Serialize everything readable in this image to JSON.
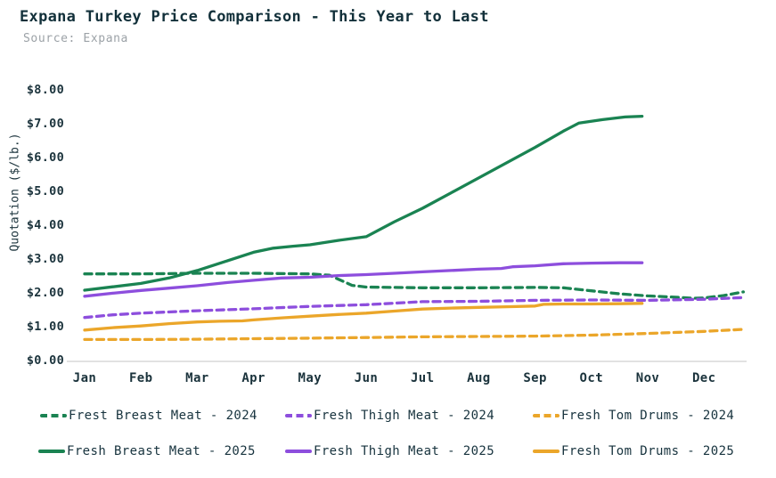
{
  "header": {
    "title": "Expana Turkey Price Comparison - This Year to Last",
    "source": "Source: Expana"
  },
  "colors": {
    "green": "#1a8352",
    "purple": "#8d4edd",
    "orange": "#eba62a",
    "title_text": "#12303a",
    "subtitle_text": "#9ca2a7",
    "axis_text": "#1b333c",
    "axis_line": "#d9d9d9"
  },
  "chart_data": {
    "type": "line",
    "title": "Expana Turkey Price Comparison - This Year to Last",
    "source": "Source: Expana",
    "xlabel": "",
    "ylabel": "Quotation ($/lb.)",
    "categories": [
      "Jan",
      "Feb",
      "Mar",
      "Apr",
      "May",
      "Jun",
      "Jul",
      "Aug",
      "Sep",
      "Oct",
      "Nov",
      "Dec"
    ],
    "ylim": [
      0,
      8
    ],
    "grid": false,
    "legend_position": "bottom",
    "y_ticks": [
      {
        "label": "$8.00",
        "value": 8
      },
      {
        "label": "$7.00",
        "value": 7
      },
      {
        "label": "$6.00",
        "value": 6
      },
      {
        "label": "$5.00",
        "value": 5
      },
      {
        "label": "$4.00",
        "value": 4
      },
      {
        "label": "$3.00",
        "value": 3
      },
      {
        "label": "$2.00",
        "value": 2
      },
      {
        "label": "$1.00",
        "value": 1
      },
      {
        "label": "$0.00",
        "value": 0
      }
    ],
    "series": [
      {
        "id": "breast-2024",
        "name": "Frest Breast Meat - 2024",
        "style": "dashed",
        "color": "#1a8352",
        "points": [
          [
            0,
            2.56
          ],
          [
            1,
            2.56
          ],
          [
            2,
            2.58
          ],
          [
            3,
            2.58
          ],
          [
            4,
            2.56
          ],
          [
            4.35,
            2.52
          ],
          [
            4.75,
            2.22
          ],
          [
            5,
            2.17
          ],
          [
            6,
            2.15
          ],
          [
            7,
            2.15
          ],
          [
            8,
            2.16
          ],
          [
            8.5,
            2.15
          ],
          [
            9,
            2.06
          ],
          [
            9.5,
            1.97
          ],
          [
            10,
            1.91
          ],
          [
            10.5,
            1.87
          ],
          [
            10.8,
            1.84
          ],
          [
            11,
            1.85
          ],
          [
            11.35,
            1.92
          ],
          [
            11.7,
            2.03
          ]
        ]
      },
      {
        "id": "thigh-2024",
        "name": "Fresh Thigh Meat - 2024",
        "style": "dashed",
        "color": "#8d4edd",
        "points": [
          [
            0,
            1.27
          ],
          [
            0.5,
            1.35
          ],
          [
            1,
            1.4
          ],
          [
            2,
            1.47
          ],
          [
            3,
            1.53
          ],
          [
            4,
            1.6
          ],
          [
            5,
            1.65
          ],
          [
            6,
            1.74
          ],
          [
            7,
            1.75
          ],
          [
            8,
            1.78
          ],
          [
            9,
            1.79
          ],
          [
            10,
            1.78
          ],
          [
            11,
            1.81
          ],
          [
            11.7,
            1.86
          ]
        ]
      },
      {
        "id": "tom-drums-2024",
        "name": "Fresh Tom Drums - 2024",
        "style": "dashed",
        "color": "#eba62a",
        "points": [
          [
            0,
            0.62
          ],
          [
            1,
            0.62
          ],
          [
            2,
            0.63
          ],
          [
            3,
            0.645
          ],
          [
            4,
            0.66
          ],
          [
            5,
            0.68
          ],
          [
            6,
            0.7
          ],
          [
            7,
            0.71
          ],
          [
            8,
            0.72
          ],
          [
            9,
            0.75
          ],
          [
            10,
            0.8
          ],
          [
            11,
            0.86
          ],
          [
            11.7,
            0.92
          ]
        ]
      },
      {
        "id": "breast-2025",
        "name": "Fresh Breast Meat - 2025",
        "style": "solid",
        "color": "#1a8352",
        "points": [
          [
            0,
            2.08
          ],
          [
            0.5,
            2.18
          ],
          [
            1,
            2.28
          ],
          [
            1.5,
            2.44
          ],
          [
            2,
            2.66
          ],
          [
            2.5,
            2.93
          ],
          [
            3,
            3.2
          ],
          [
            3.35,
            3.32
          ],
          [
            3.7,
            3.38
          ],
          [
            4,
            3.42
          ],
          [
            4.5,
            3.55
          ],
          [
            5,
            3.66
          ],
          [
            5.5,
            4.1
          ],
          [
            6,
            4.5
          ],
          [
            6.5,
            4.95
          ],
          [
            7,
            5.4
          ],
          [
            7.5,
            5.85
          ],
          [
            8,
            6.3
          ],
          [
            8.5,
            6.78
          ],
          [
            8.78,
            7.02
          ],
          [
            9.2,
            7.12
          ],
          [
            9.6,
            7.2
          ],
          [
            9.9,
            7.22
          ]
        ]
      },
      {
        "id": "thigh-2025",
        "name": "Fresh Thigh Meat - 2025",
        "style": "solid",
        "color": "#8d4edd",
        "points": [
          [
            0,
            1.9
          ],
          [
            0.5,
            1.99
          ],
          [
            1,
            2.07
          ],
          [
            1.5,
            2.14
          ],
          [
            2,
            2.21
          ],
          [
            2.5,
            2.3
          ],
          [
            3,
            2.37
          ],
          [
            3.5,
            2.44
          ],
          [
            4,
            2.46
          ],
          [
            4.5,
            2.51
          ],
          [
            5,
            2.54
          ],
          [
            5.5,
            2.58
          ],
          [
            6,
            2.62
          ],
          [
            6.5,
            2.66
          ],
          [
            7,
            2.7
          ],
          [
            7.4,
            2.72
          ],
          [
            7.6,
            2.77
          ],
          [
            8,
            2.8
          ],
          [
            8.5,
            2.86
          ],
          [
            9,
            2.88
          ],
          [
            9.5,
            2.89
          ],
          [
            9.9,
            2.89
          ]
        ]
      },
      {
        "id": "tom-drums-2025",
        "name": "Fresh Tom Drums - 2025",
        "style": "solid",
        "color": "#eba62a",
        "points": [
          [
            0,
            0.9
          ],
          [
            0.5,
            0.97
          ],
          [
            1,
            1.02
          ],
          [
            1.5,
            1.09
          ],
          [
            2,
            1.14
          ],
          [
            2.4,
            1.16
          ],
          [
            2.8,
            1.17
          ],
          [
            3,
            1.2
          ],
          [
            3.5,
            1.26
          ],
          [
            4,
            1.31
          ],
          [
            4.5,
            1.36
          ],
          [
            5,
            1.4
          ],
          [
            5.5,
            1.46
          ],
          [
            6,
            1.52
          ],
          [
            6.5,
            1.55
          ],
          [
            7,
            1.57
          ],
          [
            7.5,
            1.59
          ],
          [
            8,
            1.61
          ],
          [
            8.15,
            1.66
          ],
          [
            8.5,
            1.67
          ],
          [
            9,
            1.67
          ],
          [
            9.5,
            1.68
          ],
          [
            9.9,
            1.69
          ]
        ]
      }
    ]
  },
  "legend": {
    "rows": [
      {
        "items": [
          0,
          1,
          2
        ]
      },
      {
        "items": [
          3,
          4,
          5
        ]
      }
    ]
  }
}
